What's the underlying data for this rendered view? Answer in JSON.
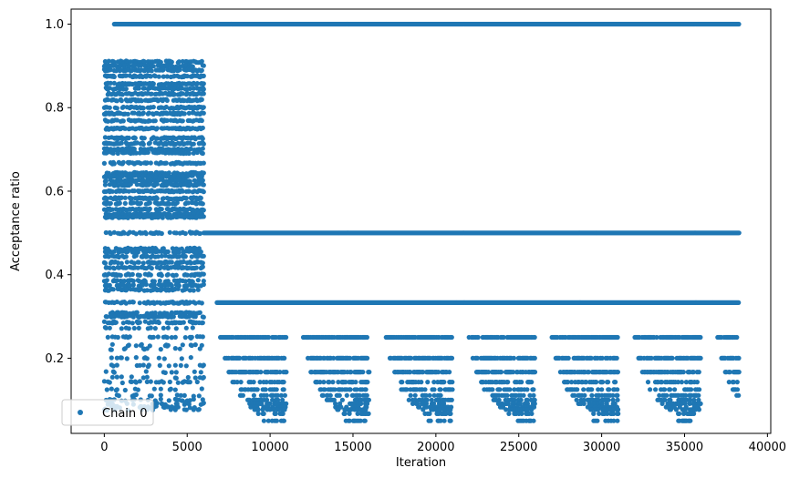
{
  "chart_data": {
    "type": "scatter",
    "xlabel": "Iteration",
    "ylabel": "Acceptance ratio",
    "xlim": [
      -2000,
      40200
    ],
    "ylim": [
      0.02,
      1.036
    ],
    "xticks": [
      0,
      5000,
      10000,
      15000,
      20000,
      25000,
      30000,
      35000,
      40000
    ],
    "xtick_labels": [
      "0",
      "5000",
      "10000",
      "15000",
      "20000",
      "25000",
      "30000",
      "35000",
      "40000"
    ],
    "yticks": [
      0.2,
      0.4,
      0.6,
      0.8,
      1.0
    ],
    "ytick_labels": [
      "0.2",
      "0.4",
      "0.6",
      "0.8",
      "1.0"
    ],
    "grid": false,
    "legend": {
      "position": "lower-left",
      "entries": [
        "Chain 0"
      ]
    },
    "series": [
      {
        "name": "Chain 0",
        "color": "#1f77b4",
        "marker": "circle",
        "segments": [
          {
            "x_start": 0,
            "x_end": 6000,
            "pattern": "dense-early",
            "levels": [
              0.91,
              0.9,
              0.89,
              0.875,
              0.857,
              0.846,
              0.833,
              0.818,
              0.8,
              0.786,
              0.769,
              0.75,
              0.727,
              0.714,
              0.7,
              0.692,
              0.667,
              0.643,
              0.636,
              0.625,
              0.615,
              0.6,
              0.583,
              0.571,
              0.556,
              0.545,
              0.538,
              0.5,
              0.462,
              0.455,
              0.444,
              0.429,
              0.417,
              0.4,
              0.385,
              0.375,
              0.364,
              0.333,
              0.308,
              0.3,
              0.286,
              0.273,
              0.25,
              0.231,
              0.222,
              0.2,
              0.182,
              0.167,
              0.154,
              0.143,
              0.125,
              0.111,
              0.1,
              0.091,
              0.083,
              0.077
            ]
          },
          {
            "x_start": 600,
            "x_end": 38300,
            "pattern": "continuous",
            "levels": [
              1.0
            ]
          },
          {
            "x_start": 6000,
            "x_end": 38300,
            "pattern": "continuous",
            "levels": [
              0.5
            ]
          },
          {
            "x_start": 6800,
            "x_end": 38300,
            "pattern": "continuous",
            "levels": [
              0.333
            ]
          },
          {
            "x_start": 7000,
            "x_end": 38300,
            "pattern": "periodic-tail",
            "period": 5000,
            "tail_levels": [
              0.25,
              0.2,
              0.167,
              0.143,
              0.125,
              0.111,
              0.1,
              0.091,
              0.083,
              0.077,
              0.067,
              0.05
            ]
          }
        ]
      }
    ]
  }
}
